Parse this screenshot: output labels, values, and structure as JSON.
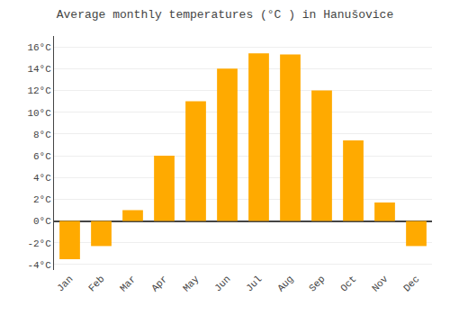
{
  "chart_data": {
    "type": "bar",
    "title": "Average monthly temperatures (°C ) in Hanušovice",
    "categories": [
      "Jan",
      "Feb",
      "Mar",
      "Apr",
      "May",
      "Jun",
      "Jul",
      "Aug",
      "Sep",
      "Oct",
      "Nov",
      "Dec"
    ],
    "values": [
      -3.5,
      -2.3,
      1.0,
      6.0,
      11.0,
      14.0,
      15.4,
      15.3,
      12.0,
      7.4,
      1.7,
      -2.3
    ],
    "color": "#FFAA00",
    "ylim": [
      -4.5,
      17.0
    ],
    "yticks": [
      {
        "value": -4,
        "label": "-4°C"
      },
      {
        "value": -2,
        "label": "-2°C"
      },
      {
        "value": 0,
        "label": "0°C"
      },
      {
        "value": 2,
        "label": "2°C"
      },
      {
        "value": 4,
        "label": "4°C"
      },
      {
        "value": 6,
        "label": "6°C"
      },
      {
        "value": 8,
        "label": "8°C"
      },
      {
        "value": 10,
        "label": "10°C"
      },
      {
        "value": 12,
        "label": "12°C"
      },
      {
        "value": 14,
        "label": "14°C"
      },
      {
        "value": 16,
        "label": "16°C"
      }
    ],
    "grid": true
  }
}
